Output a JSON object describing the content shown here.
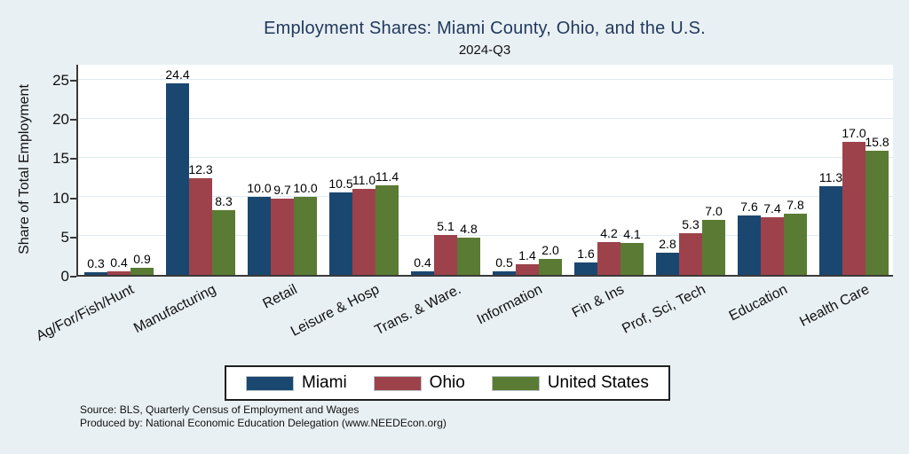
{
  "title": "Employment Shares: Miami County, Ohio, and the U.S.",
  "subtitle": "2024-Q3",
  "source_line1": "Source: BLS, Quarterly Census of Employment and Wages",
  "source_line2": "Produced by: National Economic Education Delegation (www.NEEDEcon.org)",
  "chart_data": {
    "type": "bar",
    "title": "Employment Shares: Miami County, Ohio, and the U.S.",
    "subtitle": "2024-Q3",
    "xlabel": "",
    "ylabel": "Share of Total Employment",
    "categories": [
      "Ag/For/Fish/Hunt",
      "Manufacturing",
      "Retail",
      "Leisure & Hosp",
      "Trans. & Ware.",
      "Information",
      "Fin & Ins",
      "Prof, Sci, Tech",
      "Education",
      "Health Care"
    ],
    "series": [
      {
        "name": "Miami",
        "color": "#1a476f",
        "values": [
          0.3,
          24.4,
          10.0,
          10.5,
          0.4,
          0.5,
          1.6,
          2.8,
          7.6,
          11.3
        ]
      },
      {
        "name": "Ohio",
        "color": "#9d424b",
        "values": [
          0.4,
          12.3,
          9.7,
          11.0,
          5.1,
          1.4,
          4.2,
          5.3,
          7.4,
          17.0
        ]
      },
      {
        "name": "United States",
        "color": "#5a7b33",
        "values": [
          0.9,
          8.3,
          10.0,
          11.4,
          4.8,
          2.0,
          4.1,
          7.0,
          7.8,
          15.8
        ]
      }
    ],
    "yticks": [
      0,
      5,
      10,
      15,
      20,
      25
    ],
    "ylim": [
      0,
      26.8
    ],
    "grid": true,
    "grid_color": "#dde9f1",
    "background_color": "#e9f0f3",
    "plot_background": "#ffffff",
    "title_color": "#21395f",
    "legend_position": "bottom",
    "bar_value_labels": true
  }
}
